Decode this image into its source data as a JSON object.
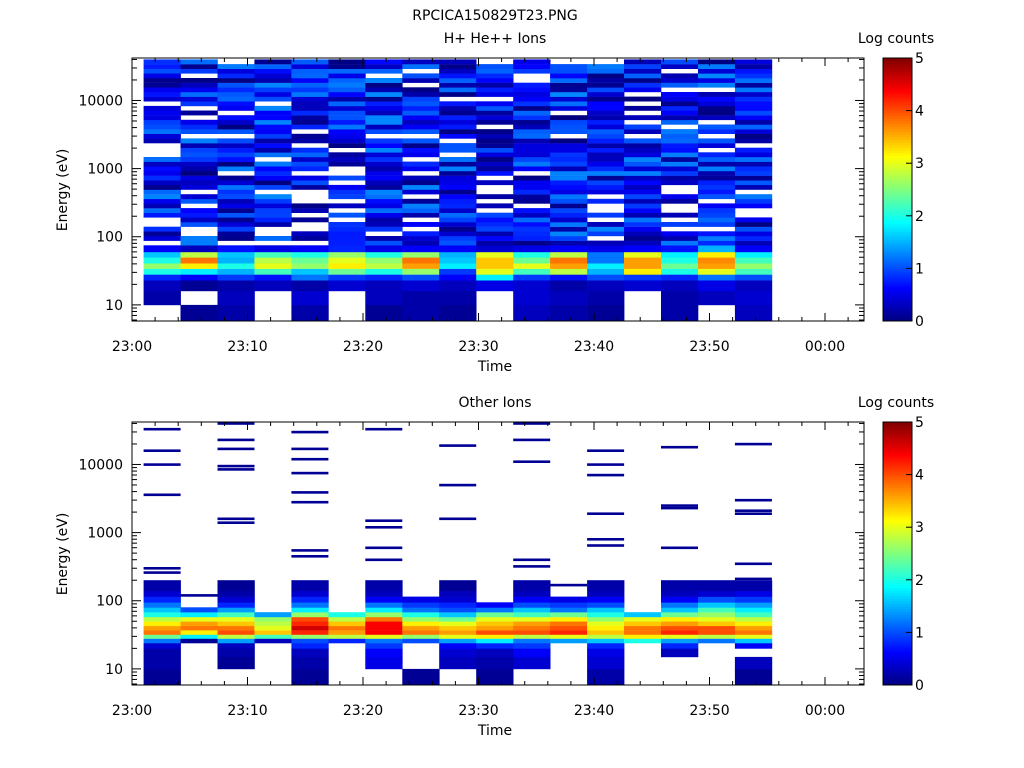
{
  "figure_title": "RPCICA150829T23.PNG",
  "chart_data": [
    {
      "type": "heatmap",
      "title": "H+ He++ Ions",
      "xlabel": "Time",
      "ylabel": "Energy (eV)",
      "colorbar_label": "Log counts",
      "colorbar_ticks": [
        "0",
        "1",
        "2",
        "3",
        "4",
        "5"
      ],
      "colorbar_range": [
        0,
        5
      ],
      "colormap": "jet",
      "x_ticks": [
        "23:00",
        "23:10",
        "23:20",
        "23:30",
        "23:40",
        "23:50",
        "00:00"
      ],
      "x_range_minutes": [
        0,
        64
      ],
      "y_ticks": [
        "10",
        "100",
        "1000",
        "10000"
      ],
      "y_scale": "log",
      "y_range": [
        5.8,
        42000
      ],
      "time_bins_minutes": [
        [
          1,
          4.2
        ],
        [
          4.2,
          7.4
        ],
        [
          7.4,
          10.6
        ],
        [
          10.6,
          13.8
        ],
        [
          13.8,
          17
        ],
        [
          17,
          20.2
        ],
        [
          20.2,
          23.4
        ],
        [
          23.4,
          26.6
        ],
        [
          26.6,
          29.8
        ],
        [
          29.8,
          33
        ],
        [
          33,
          36.2
        ],
        [
          36.2,
          39.4
        ],
        [
          39.4,
          42.6
        ],
        [
          42.6,
          45.8
        ],
        [
          45.8,
          49
        ],
        [
          49,
          52.2
        ],
        [
          52.2,
          55.4
        ]
      ],
      "bands": [
        {
          "energy": [
            5.8,
            10
          ],
          "values": [
            null,
            0.1,
            0.2,
            null,
            0.2,
            null,
            0.1,
            0.2,
            0.1,
            null,
            0.3,
            0.2,
            0.1,
            null,
            0.2,
            null,
            0.3
          ]
        },
        {
          "energy": [
            10,
            16
          ],
          "values": [
            0.2,
            null,
            0.3,
            null,
            0.4,
            null,
            0.3,
            0.2,
            0.2,
            null,
            0.4,
            0.3,
            0.2,
            null,
            0.2,
            0.3,
            0.4
          ]
        },
        {
          "energy": [
            16,
            23
          ],
          "values": [
            0.3,
            0.1,
            0.2,
            0.3,
            0.2,
            0.4,
            0.3,
            0.4,
            0.3,
            0.5,
            0.4,
            0.2,
            0.3,
            0.4,
            0.3,
            0.5,
            0.3
          ]
        },
        {
          "energy": [
            23,
            28
          ],
          "values": [
            0.8,
            0.6,
            0.9,
            0.7,
            1.2,
            0.9,
            0.8,
            1.0,
            0.6,
            1.8,
            0.9,
            0.7,
            1.0,
            0.9,
            0.8,
            1.2,
            1.0
          ]
        },
        {
          "energy": [
            28,
            34
          ],
          "values": [
            2.0,
            1.8,
            1.5,
            2.2,
            1.6,
            2.4,
            2.0,
            2.6,
            0.9,
            3.0,
            2.2,
            2.8,
            1.5,
            3.2,
            2.0,
            3.0,
            2.2
          ]
        },
        {
          "energy": [
            34,
            41
          ],
          "values": [
            2.6,
            3.2,
            2.0,
            3.0,
            2.6,
            3.2,
            2.8,
            3.6,
            1.8,
            3.4,
            3.0,
            3.6,
            1.8,
            3.6,
            2.4,
            3.6,
            2.6
          ]
        },
        {
          "energy": [
            41,
            50
          ],
          "values": [
            2.0,
            3.8,
            1.5,
            2.8,
            2.4,
            3.0,
            2.6,
            3.8,
            1.6,
            3.4,
            2.4,
            3.8,
            1.2,
            3.6,
            2.0,
            3.7,
            2.2
          ]
        },
        {
          "energy": [
            50,
            60
          ],
          "values": [
            1.6,
            2.8,
            1.6,
            2.2,
            2.0,
            2.6,
            2.0,
            2.6,
            1.5,
            3.0,
            2.0,
            2.8,
            1.2,
            3.0,
            1.8,
            3.2,
            1.8
          ]
        },
        {
          "energy": [
            60,
            75
          ],
          "values": [
            0.6,
            0.3,
            0.7,
            0.5,
            0.6,
            0.8,
            0.5,
            0.6,
            0.6,
            0.4,
            0.5,
            0.6,
            0.5,
            0.6,
            0.7,
            1.5,
            0.6
          ]
        }
      ],
      "high_energy_bands": {
        "energy": [
          75,
          40000
        ],
        "count": 40,
        "value_range": [
          0.0,
          1.3
        ]
      }
    },
    {
      "type": "heatmap",
      "title": "Other Ions",
      "xlabel": "Time",
      "ylabel": "Energy (eV)",
      "colorbar_label": "Log counts",
      "colorbar_ticks": [
        "0",
        "1",
        "2",
        "3",
        "4",
        "5"
      ],
      "colorbar_range": [
        0,
        5
      ],
      "colormap": "jet",
      "x_ticks": [
        "23:00",
        "23:10",
        "23:20",
        "23:30",
        "23:40",
        "23:50",
        "00:00"
      ],
      "x_range_minutes": [
        0,
        64
      ],
      "y_ticks": [
        "10",
        "100",
        "1000",
        "10000"
      ],
      "y_scale": "log",
      "y_range": [
        5.8,
        42000
      ],
      "time_bins_minutes": [
        [
          1,
          4.2
        ],
        [
          4.2,
          7.4
        ],
        [
          7.4,
          10.6
        ],
        [
          10.6,
          13.8
        ],
        [
          13.8,
          17
        ],
        [
          17,
          20.2
        ],
        [
          20.2,
          23.4
        ],
        [
          23.4,
          26.6
        ],
        [
          26.6,
          29.8
        ],
        [
          29.8,
          33
        ],
        [
          33,
          36.2
        ],
        [
          36.2,
          39.4
        ],
        [
          39.4,
          42.6
        ],
        [
          42.6,
          45.8
        ],
        [
          45.8,
          49
        ],
        [
          49,
          52.2
        ],
        [
          52.2,
          55.4
        ]
      ],
      "bands": [
        {
          "energy": [
            5.8,
            10
          ],
          "values": [
            0.1,
            null,
            null,
            null,
            0.1,
            null,
            null,
            0.1,
            null,
            0.1,
            null,
            null,
            0.2,
            null,
            null,
            null,
            0.1
          ]
        },
        {
          "energy": [
            10,
            15
          ],
          "values": [
            0.2,
            null,
            0.1,
            null,
            0.2,
            null,
            0.5,
            null,
            0.3,
            0.2,
            0.4,
            null,
            0.4,
            null,
            null,
            null,
            0.3
          ]
        },
        {
          "energy": [
            15,
            20
          ],
          "values": [
            0.2,
            null,
            0.2,
            null,
            0.3,
            null,
            0.6,
            null,
            0.4,
            0.3,
            0.6,
            null,
            0.5,
            null,
            0.3,
            null,
            null
          ]
        },
        {
          "energy": [
            20,
            24
          ],
          "values": [
            0.4,
            null,
            0.3,
            null,
            0.8,
            null,
            0.9,
            null,
            0.6,
            0.8,
            0.9,
            null,
            0.8,
            null,
            0.8,
            null,
            0.6
          ]
        },
        {
          "energy": [
            24,
            28
          ],
          "values": [
            1.2,
            0.1,
            1.4,
            0.3,
            1.0,
            0.8,
            1.2,
            1.0,
            1.4,
            1.8,
            1.2,
            1.4,
            1.6,
            2.0,
            1.4,
            1.2,
            1.6
          ]
        },
        {
          "energy": [
            28,
            32
          ],
          "values": [
            2.4,
            1.8,
            2.8,
            2.2,
            2.6,
            2.8,
            3.0,
            2.6,
            3.0,
            3.2,
            2.8,
            3.0,
            2.8,
            3.2,
            3.0,
            2.8,
            3.0
          ]
        },
        {
          "energy": [
            32,
            37
          ],
          "values": [
            3.8,
            3.2,
            4.0,
            3.4,
            4.2,
            3.6,
            4.4,
            3.8,
            3.6,
            4.0,
            4.0,
            4.2,
            3.4,
            3.8,
            4.2,
            4.0,
            3.8
          ]
        },
        {
          "energy": [
            37,
            43
          ],
          "values": [
            3.6,
            3.8,
            3.8,
            3.0,
            4.6,
            3.8,
            4.4,
            3.6,
            3.4,
            3.6,
            3.8,
            4.0,
            3.2,
            3.8,
            4.0,
            4.0,
            3.6
          ]
        },
        {
          "energy": [
            43,
            50
          ],
          "values": [
            3.2,
            3.6,
            3.4,
            2.8,
            4.2,
            3.4,
            4.4,
            3.2,
            3.0,
            3.4,
            3.6,
            3.8,
            3.0,
            3.4,
            3.6,
            3.4,
            3.2
          ]
        },
        {
          "energy": [
            50,
            58
          ],
          "values": [
            2.8,
            3.0,
            3.0,
            2.6,
            4.0,
            2.8,
            3.8,
            2.6,
            2.4,
            3.0,
            3.0,
            3.2,
            2.6,
            3.0,
            3.2,
            3.0,
            2.8
          ]
        },
        {
          "energy": [
            58,
            68
          ],
          "values": [
            2.0,
            1.8,
            2.2,
            1.4,
            2.6,
            2.0,
            2.6,
            2.0,
            1.6,
            2.4,
            2.2,
            2.4,
            2.0,
            1.6,
            2.4,
            2.6,
            2.2
          ]
        },
        {
          "energy": [
            68,
            80
          ],
          "values": [
            1.6,
            1.0,
            1.4,
            null,
            1.8,
            null,
            1.8,
            1.2,
            1.0,
            1.2,
            1.6,
            1.2,
            1.6,
            null,
            1.6,
            2.2,
            1.8
          ]
        },
        {
          "energy": [
            80,
            95
          ],
          "values": [
            1.2,
            null,
            0.8,
            null,
            1.2,
            null,
            1.2,
            0.9,
            0.8,
            0.6,
            1.0,
            0.9,
            1.0,
            null,
            1.2,
            1.6,
            1.4
          ]
        },
        {
          "energy": [
            95,
            115
          ],
          "values": [
            0.8,
            null,
            0.4,
            null,
            0.8,
            null,
            0.6,
            0.5,
            0.4,
            null,
            0.6,
            0.5,
            0.6,
            null,
            0.6,
            1.0,
            0.9
          ]
        },
        {
          "energy": [
            115,
            140
          ],
          "values": [
            0.4,
            null,
            0.2,
            null,
            0.4,
            null,
            0.3,
            null,
            0.3,
            null,
            0.3,
            null,
            0.3,
            null,
            0.3,
            0.4,
            0.5
          ]
        },
        {
          "energy": [
            140,
            200
          ],
          "values": [
            0.2,
            null,
            0.1,
            null,
            0.2,
            null,
            0.2,
            null,
            0.1,
            null,
            0.2,
            null,
            0.2,
            null,
            0.2,
            0.2,
            0.2
          ]
        }
      ],
      "lines": [
        {
          "bin": 0,
          "energy": [
            300,
            260,
            3600,
            10000,
            16000,
            33000
          ]
        },
        {
          "bin": 1,
          "energy": [
            120
          ]
        },
        {
          "bin": 2,
          "energy": [
            1400,
            1600,
            8500,
            9500,
            17000,
            23000,
            40000
          ]
        },
        {
          "bin": 4,
          "energy": [
            550,
            450,
            2800,
            3900,
            7500,
            12000,
            17000,
            30000
          ]
        },
        {
          "bin": 6,
          "energy": [
            1200,
            1500,
            600,
            400,
            33000
          ]
        },
        {
          "bin": 8,
          "energy": [
            1600,
            5000,
            19000
          ]
        },
        {
          "bin": 10,
          "energy": [
            400,
            320,
            11000,
            23000,
            40000
          ]
        },
        {
          "bin": 11,
          "energy": [
            170
          ]
        },
        {
          "bin": 12,
          "energy": [
            800,
            650,
            1900,
            7000,
            10000,
            16000
          ]
        },
        {
          "bin": 14,
          "energy": [
            600,
            2300,
            2500,
            18000
          ]
        },
        {
          "bin": 16,
          "energy": [
            350,
            210,
            1900,
            2100,
            3000,
            20000
          ]
        }
      ]
    }
  ]
}
